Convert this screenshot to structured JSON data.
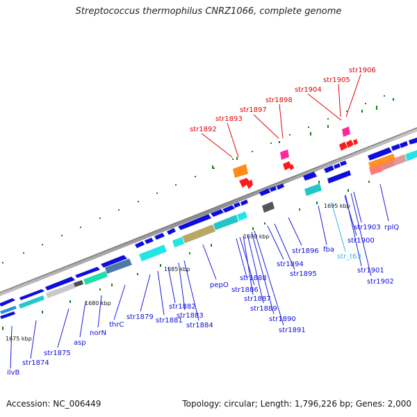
{
  "title": "Streptococcus thermophilus CNRZ1066, complete genome",
  "footer": {
    "accession": "Accession: NC_006449",
    "summary": "Topology: circular; Length: 1,796,226 bp; Genes: 2,000"
  },
  "ruler_labels": [
    "1675 kbp",
    "1680 kbp",
    "1685 kbp",
    "1690 kbp",
    "1695 kbp"
  ],
  "colors": {
    "cds": "#0d0de0",
    "rna_label": "#dd0000",
    "trna_label": "#30b8e8",
    "backbone": "#999999",
    "gc_ticks": "#1a7a1a"
  },
  "gene_labels": [
    {
      "text": "ilvB",
      "kind": "cds"
    },
    {
      "text": "str1874",
      "kind": "cds"
    },
    {
      "text": "str1875",
      "kind": "cds"
    },
    {
      "text": "asp",
      "kind": "cds"
    },
    {
      "text": "norN",
      "kind": "cds"
    },
    {
      "text": "thrC",
      "kind": "cds"
    },
    {
      "text": "str1879",
      "kind": "cds"
    },
    {
      "text": "str1881",
      "kind": "cds"
    },
    {
      "text": "str1882",
      "kind": "cds"
    },
    {
      "text": "str1883",
      "kind": "cds"
    },
    {
      "text": "str1884",
      "kind": "cds"
    },
    {
      "text": "pepO",
      "kind": "cds"
    },
    {
      "text": "str1886",
      "kind": "cds"
    },
    {
      "text": "str1887",
      "kind": "cds"
    },
    {
      "text": "str1888",
      "kind": "cds"
    },
    {
      "text": "str1889",
      "kind": "cds"
    },
    {
      "text": "str1890",
      "kind": "cds"
    },
    {
      "text": "str1891",
      "kind": "cds"
    },
    {
      "text": "str1894",
      "kind": "cds"
    },
    {
      "text": "str1895",
      "kind": "cds"
    },
    {
      "text": "str1896",
      "kind": "cds"
    },
    {
      "text": "fba",
      "kind": "cds"
    },
    {
      "text": "str_t63",
      "kind": "trna"
    },
    {
      "text": "str1900",
      "kind": "cds"
    },
    {
      "text": "str1901",
      "kind": "cds"
    },
    {
      "text": "str1902",
      "kind": "cds"
    },
    {
      "text": "str1903",
      "kind": "cds"
    },
    {
      "text": "rplQ",
      "kind": "cds"
    },
    {
      "text": "str1892",
      "kind": "rna"
    },
    {
      "text": "str1893",
      "kind": "rna"
    },
    {
      "text": "str1897",
      "kind": "rna"
    },
    {
      "text": "str1898",
      "kind": "rna"
    },
    {
      "text": "str1904",
      "kind": "rna"
    },
    {
      "text": "str1905",
      "kind": "rna"
    },
    {
      "text": "str1906",
      "kind": "rna"
    }
  ]
}
